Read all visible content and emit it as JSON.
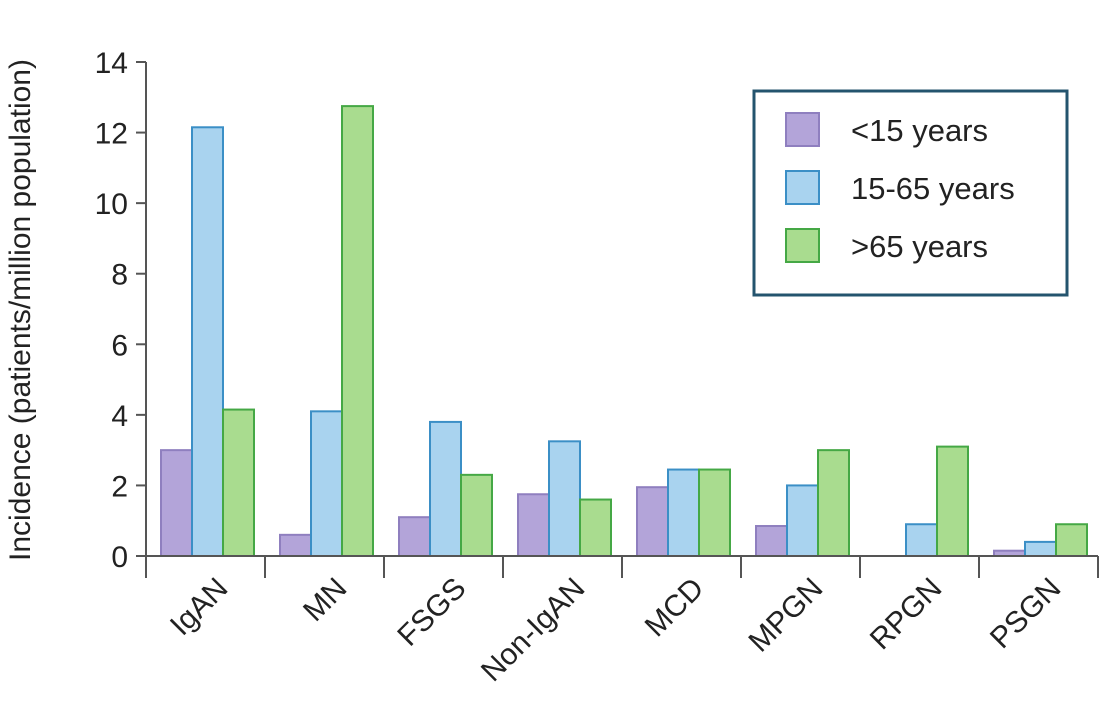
{
  "chart_data": {
    "type": "bar",
    "title": "",
    "xlabel": "",
    "ylabel": "Incidence (patients/million population)",
    "ylim": [
      0,
      14
    ],
    "yticks": [
      0,
      2,
      4,
      6,
      8,
      10,
      12,
      14
    ],
    "categories": [
      "IgAN",
      "MN",
      "FSGS",
      "Non-IgAN",
      "MCD",
      "MPGN",
      "RPGN",
      "PSGN"
    ],
    "series": [
      {
        "name": "<15 years",
        "color": "#b3a4d9",
        "edge": "#8f7fbf",
        "values": [
          3.0,
          0.6,
          1.1,
          1.75,
          1.95,
          0.85,
          0,
          0.15
        ]
      },
      {
        "name": "15-65 years",
        "color": "#a9d3ef",
        "edge": "#3b8fc6",
        "values": [
          12.15,
          4.1,
          3.8,
          3.25,
          2.45,
          2.0,
          0.9,
          0.4
        ]
      },
      {
        "name": ">65 years",
        "color": "#a9dc8f",
        "edge": "#45a845",
        "values": [
          4.15,
          12.75,
          2.3,
          1.6,
          2.45,
          3.0,
          3.1,
          0.9
        ]
      }
    ],
    "legend": {
      "position": "top-right"
    },
    "grid": false
  }
}
